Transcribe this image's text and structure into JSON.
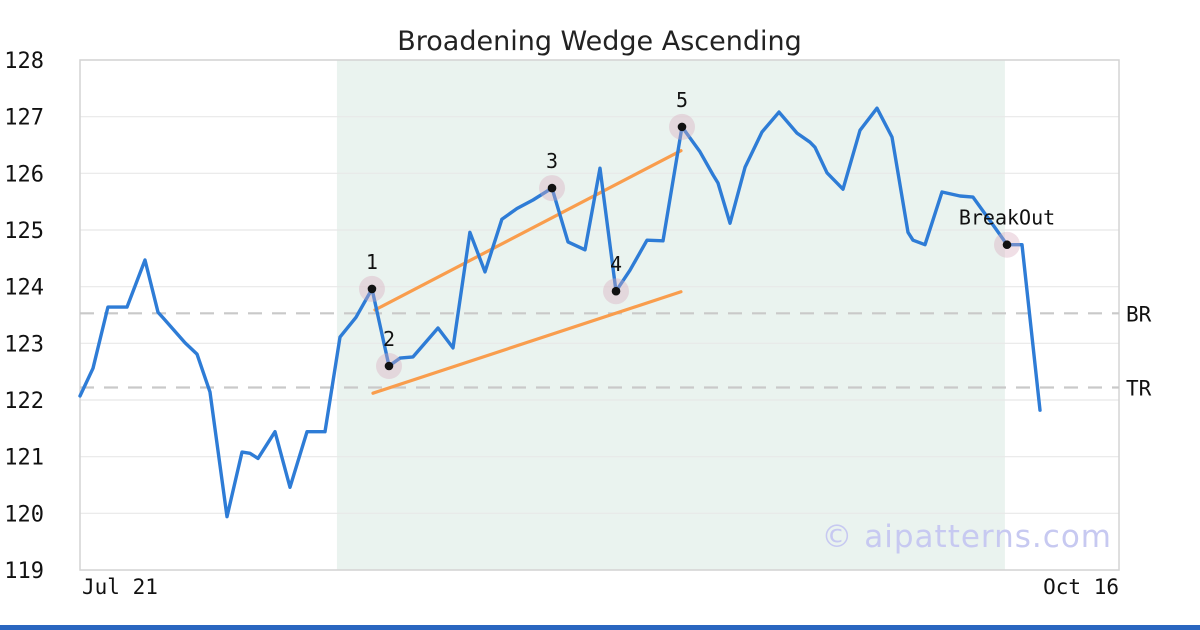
{
  "title": "Broadening Wedge Ascending",
  "watermark": "© aipatterns.com",
  "colors": {
    "line": "#2e7cd6",
    "trendline": "#f99d4d",
    "region": "#eaf3ef",
    "grid": "#e8e8e8",
    "border": "#d4d4d4",
    "dashed": "#c9c9c9",
    "marker_halo": "rgba(216,170,190,0.38)",
    "marker_dot": "#111111",
    "watermark": "#c7c9f1",
    "footer_bar": "#2a66c0",
    "text": "#111111"
  },
  "chart_data": {
    "type": "line",
    "title": "Broadening Wedge Ascending",
    "x_axis": {
      "labels": [
        "Jul 21",
        "Oct 16"
      ]
    },
    "y_axis": {
      "min": 119,
      "max": 128,
      "ticks": [
        119,
        120,
        121,
        122,
        123,
        124,
        125,
        126,
        127,
        128
      ]
    },
    "grid": true,
    "pattern_region": {
      "x0": 0.2473,
      "x1": 0.8902
    },
    "series": [
      {
        "name": "price",
        "points": [
          [
            0.0,
            122.07
          ],
          [
            0.0125,
            122.56
          ],
          [
            0.0269,
            123.64
          ],
          [
            0.0452,
            123.64
          ],
          [
            0.0626,
            124.47
          ],
          [
            0.0751,
            123.55
          ],
          [
            0.0799,
            123.45
          ],
          [
            0.1011,
            123.01
          ],
          [
            0.1126,
            122.81
          ],
          [
            0.1251,
            122.14
          ],
          [
            0.1415,
            119.94
          ],
          [
            0.1559,
            121.08
          ],
          [
            0.1636,
            121.06
          ],
          [
            0.1713,
            120.97
          ],
          [
            0.1877,
            121.44
          ],
          [
            0.2021,
            120.46
          ],
          [
            0.2185,
            121.44
          ],
          [
            0.2358,
            121.44
          ],
          [
            0.2502,
            123.11
          ],
          [
            0.2656,
            123.46
          ],
          [
            0.281,
            123.96
          ],
          [
            0.2974,
            122.6
          ],
          [
            0.308,
            122.74
          ],
          [
            0.3205,
            122.76
          ],
          [
            0.3446,
            123.27
          ],
          [
            0.359,
            122.92
          ],
          [
            0.3753,
            124.96
          ],
          [
            0.3898,
            124.26
          ],
          [
            0.4061,
            125.19
          ],
          [
            0.4206,
            125.38
          ],
          [
            0.436,
            125.53
          ],
          [
            0.4543,
            125.74
          ],
          [
            0.4697,
            124.79
          ],
          [
            0.486,
            124.65
          ],
          [
            0.5005,
            126.09
          ],
          [
            0.5159,
            123.92
          ],
          [
            0.5294,
            124.29
          ],
          [
            0.5457,
            124.82
          ],
          [
            0.5611,
            124.81
          ],
          [
            0.5794,
            126.82
          ],
          [
            0.5967,
            126.38
          ],
          [
            0.6093,
            125.97
          ],
          [
            0.6141,
            125.83
          ],
          [
            0.6256,
            125.12
          ],
          [
            0.6401,
            126.11
          ],
          [
            0.6564,
            126.73
          ],
          [
            0.6728,
            127.08
          ],
          [
            0.6901,
            126.71
          ],
          [
            0.7026,
            126.55
          ],
          [
            0.7074,
            126.46
          ],
          [
            0.719,
            126.01
          ],
          [
            0.7344,
            125.72
          ],
          [
            0.7507,
            126.76
          ],
          [
            0.7671,
            127.15
          ],
          [
            0.7815,
            126.64
          ],
          [
            0.7969,
            124.96
          ],
          [
            0.8017,
            124.82
          ],
          [
            0.8133,
            124.74
          ],
          [
            0.8296,
            125.67
          ],
          [
            0.847,
            125.6
          ],
          [
            0.8595,
            125.58
          ],
          [
            0.8787,
            125.09
          ],
          [
            0.8922,
            124.74
          ],
          [
            0.9066,
            124.74
          ],
          [
            0.924,
            121.82
          ]
        ]
      }
    ],
    "trendlines": [
      {
        "name": "upper",
        "p0": [
          0.2839,
          123.59
        ],
        "p1": [
          0.5784,
          126.4
        ]
      },
      {
        "name": "lower",
        "p0": [
          0.282,
          122.12
        ],
        "p1": [
          0.5784,
          123.91
        ]
      }
    ],
    "hlines": [
      {
        "label": "BR",
        "value": 123.53
      },
      {
        "label": "TR",
        "value": 122.22
      }
    ],
    "annotations": [
      {
        "label": "1",
        "x": 0.281,
        "value": 123.96
      },
      {
        "label": "2",
        "x": 0.2974,
        "value": 122.6
      },
      {
        "label": "3",
        "x": 0.4543,
        "value": 125.74
      },
      {
        "label": "4",
        "x": 0.5159,
        "value": 123.92
      },
      {
        "label": "5",
        "x": 0.5794,
        "value": 126.82
      },
      {
        "label": "BreakOut",
        "x": 0.8922,
        "value": 124.74
      }
    ]
  },
  "x_axis": {
    "left_label": "Jul 21",
    "right_label": "Oct 16"
  }
}
